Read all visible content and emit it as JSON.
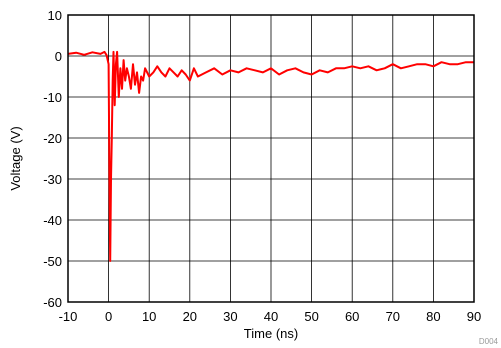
{
  "chart_data": {
    "type": "line",
    "title": "",
    "xlabel": "Time (ns)",
    "ylabel": "Voltage (V)",
    "xlim": [
      -10,
      90
    ],
    "ylim": [
      -60,
      10
    ],
    "xticks": [
      "-10",
      "0",
      "10",
      "20",
      "30",
      "40",
      "50",
      "60",
      "70",
      "80",
      "90"
    ],
    "yticks": [
      "10",
      "0",
      "-10",
      "-20",
      "-30",
      "-40",
      "-50",
      "-60"
    ],
    "grid": true,
    "line_color": "#ff0000",
    "series": [
      {
        "x": [
          -10,
          -8,
          -6,
          -4,
          -2,
          -1,
          -0.5,
          0,
          0.2,
          0.4,
          0.6,
          0.8,
          1.0,
          1.2,
          1.5,
          1.8,
          2.1,
          2.5,
          2.9,
          3.3,
          3.7,
          4.1,
          4.5,
          5,
          5.5,
          6,
          6.5,
          7,
          7.5,
          8,
          8.5,
          9,
          10,
          11,
          12,
          13,
          14,
          15,
          16,
          17,
          18,
          19,
          20,
          21,
          22,
          24,
          26,
          28,
          30,
          32,
          34,
          36,
          38,
          40,
          42,
          44,
          46,
          48,
          50,
          52,
          54,
          56,
          58,
          60,
          62,
          64,
          66,
          68,
          70,
          72,
          74,
          76,
          78,
          80,
          82,
          84,
          86,
          88,
          90
        ],
        "y": [
          0.5,
          0.8,
          0.3,
          0.9,
          0.5,
          1.0,
          0.2,
          -2,
          -28,
          -50,
          -30,
          -20,
          -6,
          1,
          -12,
          -2,
          1,
          -10,
          -3,
          -8,
          -1,
          -6,
          -3,
          -5,
          -8,
          -2,
          -7,
          -4,
          -9,
          -5,
          -6,
          -3,
          -5,
          -4,
          -2.5,
          -4,
          -5,
          -3,
          -4,
          -5,
          -3.5,
          -4.5,
          -6,
          -3,
          -5,
          -4,
          -3,
          -4.5,
          -3.5,
          -4,
          -3,
          -3.5,
          -4,
          -3,
          -4.5,
          -3.5,
          -3,
          -4,
          -4.5,
          -3.5,
          -4,
          -3,
          -3,
          -2.5,
          -3,
          -2.5,
          -3.5,
          -3,
          -2,
          -3,
          -2.5,
          -2,
          -2,
          -2.5,
          -1.5,
          -2,
          -2,
          -1.5,
          -1.5
        ]
      }
    ]
  },
  "doc_id": "D004"
}
